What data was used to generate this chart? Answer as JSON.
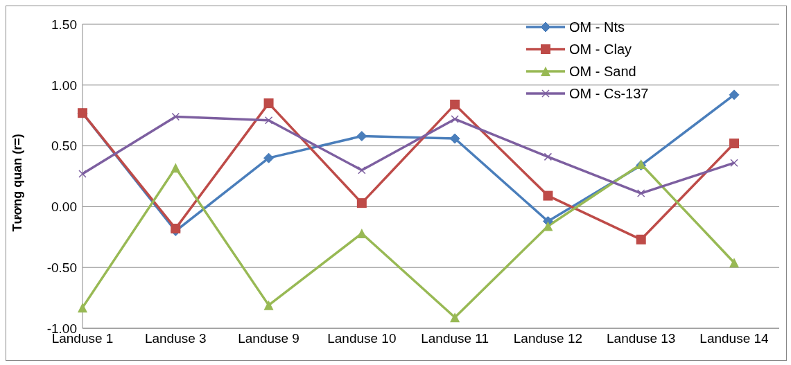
{
  "chart_data": {
    "type": "line",
    "ylabel": "Tương quan (r=)",
    "categories": [
      "Landuse 1",
      "Landuse 3",
      "Landuse 9",
      "Landuse 10",
      "Landuse 11",
      "Landuse 12",
      "Landuse 13",
      "Landuse 14"
    ],
    "series": [
      {
        "name": "OM - Nts",
        "color": "#4a7ebb",
        "marker": "diamond",
        "values": [
          0.77,
          -0.2,
          0.4,
          0.58,
          0.56,
          -0.12,
          0.34,
          0.92
        ]
      },
      {
        "name": "OM - Clay",
        "color": "#be4b48",
        "marker": "square",
        "values": [
          0.77,
          -0.18,
          0.85,
          0.03,
          0.84,
          0.09,
          -0.27,
          0.52
        ]
      },
      {
        "name": "OM - Sand",
        "color": "#98b954",
        "marker": "triangle",
        "values": [
          -0.83,
          0.32,
          -0.81,
          -0.22,
          -0.91,
          -0.16,
          0.35,
          -0.46
        ]
      },
      {
        "name": "OM - Cs-137",
        "color": "#7d5fa0",
        "marker": "cross",
        "values": [
          0.27,
          0.74,
          0.71,
          0.3,
          0.72,
          0.41,
          0.11,
          0.36
        ]
      }
    ],
    "ylim": [
      -1,
      1.5
    ],
    "yticks": [
      {
        "value": -1,
        "label": "-1.00"
      },
      {
        "value": -0.5,
        "label": "-0.50"
      },
      {
        "value": 0,
        "label": "0.00"
      },
      {
        "value": 0.5,
        "label": "0.50"
      },
      {
        "value": 1,
        "label": "1.00"
      },
      {
        "value": 1.5,
        "label": "1.50"
      }
    ],
    "grid": "y",
    "legend": "top right",
    "line_style": "solid"
  }
}
